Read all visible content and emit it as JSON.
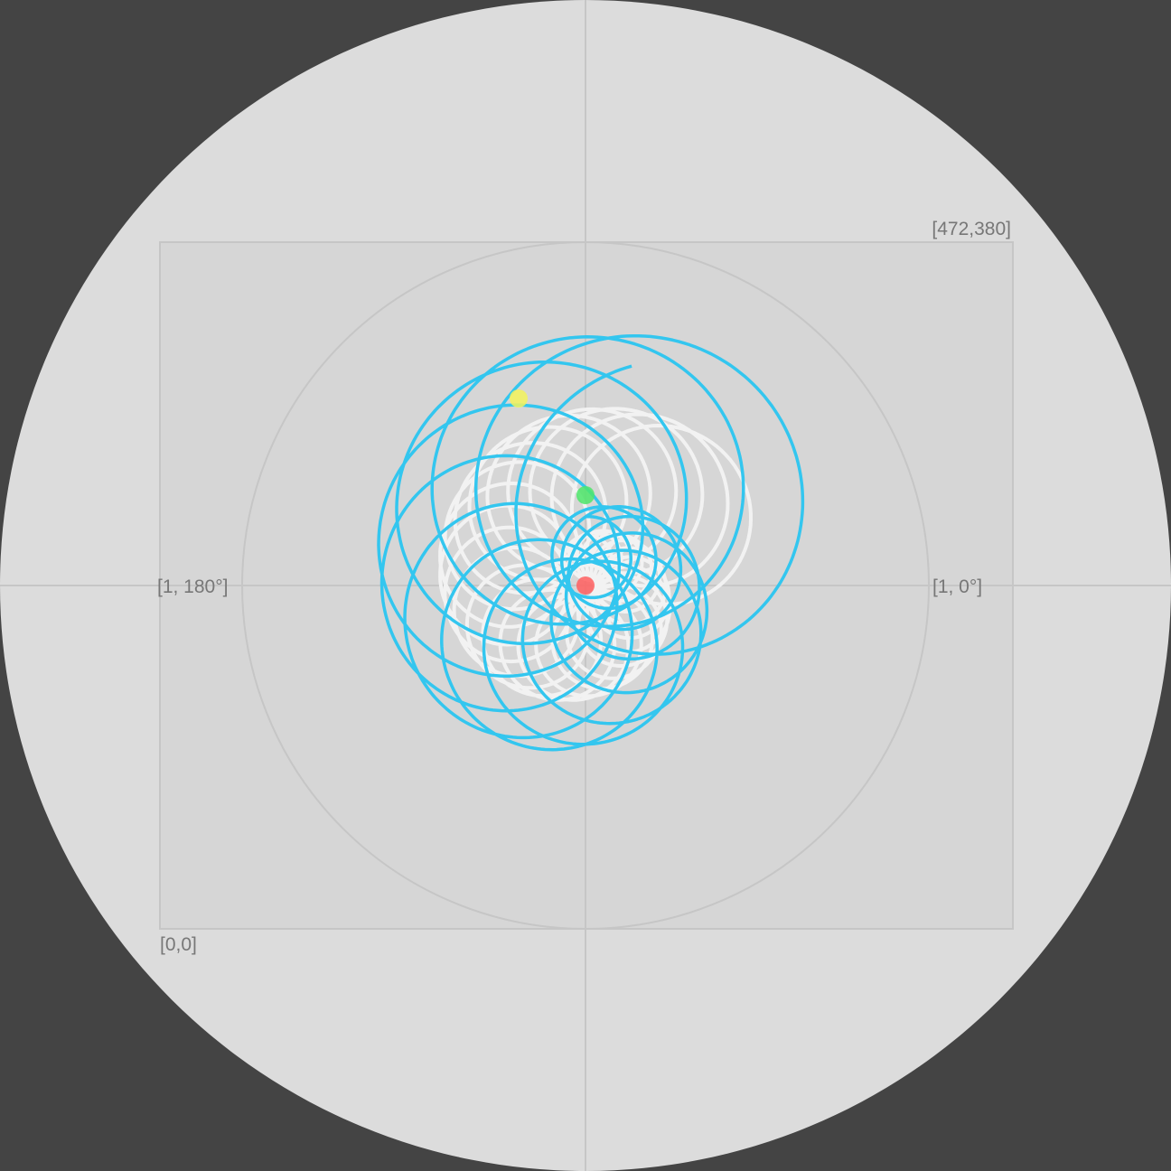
{
  "canvas": {
    "background": "#444444",
    "disc_color": "#dcdcdc",
    "rect_color": "#d6d6d6",
    "guide_color": "#c6c6c6"
  },
  "labels": {
    "top_right": "[472,380]",
    "bottom_left": "[0,0]",
    "left": "[1, 180°]",
    "right": "[1, 0°]"
  },
  "trace": {
    "primary_color": "#33c6ef",
    "secondary_color": "#f2f2f2"
  },
  "markers": [
    {
      "name": "origin-marker",
      "color": "#ff5f5f"
    },
    {
      "name": "arm-marker",
      "color": "#4ee66a"
    },
    {
      "name": "pen-marker",
      "color": "#f3f35a"
    }
  ]
}
